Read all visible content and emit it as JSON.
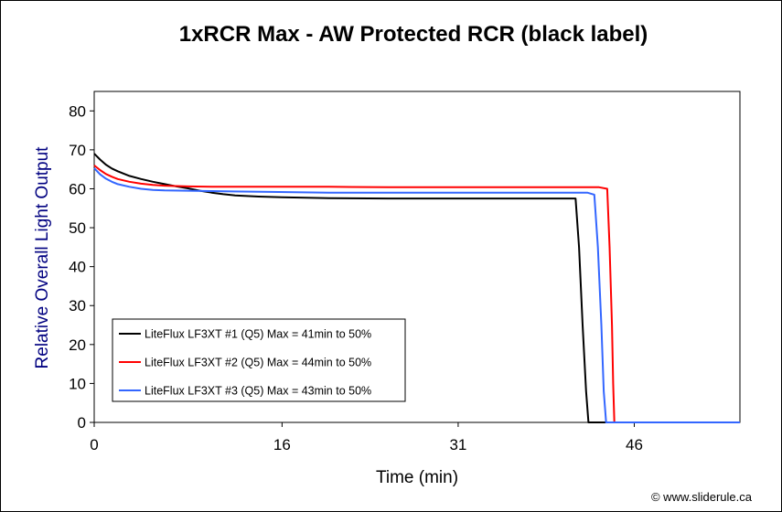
{
  "chart_data": {
    "type": "line",
    "title": "1xRCR Max - AW Protected RCR (black label)",
    "xlabel": "Time (min)",
    "ylabel": "Relative Overall Light Output",
    "xlim": [
      0,
      55
    ],
    "ylim": [
      0,
      85
    ],
    "x_ticks": [
      0,
      16,
      31,
      46
    ],
    "x_tick_labels": [
      "0",
      "16",
      "31",
      "46"
    ],
    "y_ticks": [
      0,
      10,
      20,
      30,
      40,
      50,
      60,
      70,
      80
    ],
    "y_tick_labels": [
      "0",
      "10",
      "20",
      "30",
      "40",
      "50",
      "60",
      "70",
      "80"
    ],
    "grid": false,
    "legend_position": "lower-left",
    "ylabel_color": "#000080",
    "series": [
      {
        "name": "LiteFlux LF3XT #1 (Q5) Max = 41min to 50%",
        "color": "#000000",
        "points": [
          [
            0,
            69
          ],
          [
            0.5,
            67.5
          ],
          [
            1,
            66.2
          ],
          [
            1.5,
            65.2
          ],
          [
            2,
            64.5
          ],
          [
            3,
            63.3
          ],
          [
            4,
            62.5
          ],
          [
            5,
            61.8
          ],
          [
            6,
            61.2
          ],
          [
            7,
            60.6
          ],
          [
            8,
            60.1
          ],
          [
            9,
            59.5
          ],
          [
            10,
            59
          ],
          [
            11,
            58.6
          ],
          [
            12,
            58.3
          ],
          [
            14,
            58
          ],
          [
            16,
            57.8
          ],
          [
            20,
            57.6
          ],
          [
            25,
            57.5
          ],
          [
            30,
            57.5
          ],
          [
            35,
            57.5
          ],
          [
            40,
            57.5
          ],
          [
            41,
            57.5
          ],
          [
            41.3,
            45
          ],
          [
            41.6,
            25
          ],
          [
            41.9,
            8
          ],
          [
            42.1,
            0
          ],
          [
            55,
            0
          ]
        ]
      },
      {
        "name": "LiteFlux LF3XT #2 (Q5) Max = 44min to 50%",
        "color": "#ff0000",
        "points": [
          [
            0,
            66
          ],
          [
            0.5,
            64.8
          ],
          [
            1,
            63.8
          ],
          [
            1.5,
            63.1
          ],
          [
            2,
            62.5
          ],
          [
            3,
            61.8
          ],
          [
            4,
            61.3
          ],
          [
            5,
            61
          ],
          [
            6,
            60.8
          ],
          [
            8,
            60.6
          ],
          [
            10,
            60.5
          ],
          [
            15,
            60.5
          ],
          [
            20,
            60.5
          ],
          [
            25,
            60.4
          ],
          [
            30,
            60.4
          ],
          [
            35,
            60.4
          ],
          [
            40,
            60.4
          ],
          [
            42,
            60.4
          ],
          [
            43,
            60.4
          ],
          [
            43.7,
            60
          ],
          [
            43.9,
            45
          ],
          [
            44.1,
            25
          ],
          [
            44.2,
            10
          ],
          [
            44.3,
            0
          ],
          [
            55,
            0
          ]
        ]
      },
      {
        "name": "LiteFlux LF3XT #3 (Q5) Max = 43min to 50%",
        "color": "#3366ff",
        "points": [
          [
            0,
            65.3
          ],
          [
            0.5,
            63.7
          ],
          [
            1,
            62.6
          ],
          [
            1.5,
            61.8
          ],
          [
            2,
            61.2
          ],
          [
            3,
            60.5
          ],
          [
            4,
            60
          ],
          [
            5,
            59.7
          ],
          [
            6,
            59.6
          ],
          [
            8,
            59.5
          ],
          [
            10,
            59.4
          ],
          [
            15,
            59.2
          ],
          [
            20,
            59
          ],
          [
            25,
            59
          ],
          [
            30,
            59
          ],
          [
            35,
            59
          ],
          [
            40,
            59
          ],
          [
            42,
            59
          ],
          [
            42.6,
            58.5
          ],
          [
            42.9,
            45
          ],
          [
            43.2,
            25
          ],
          [
            43.4,
            8
          ],
          [
            43.6,
            0
          ],
          [
            55,
            0
          ]
        ]
      }
    ]
  },
  "credit": "© www.sliderule.ca"
}
